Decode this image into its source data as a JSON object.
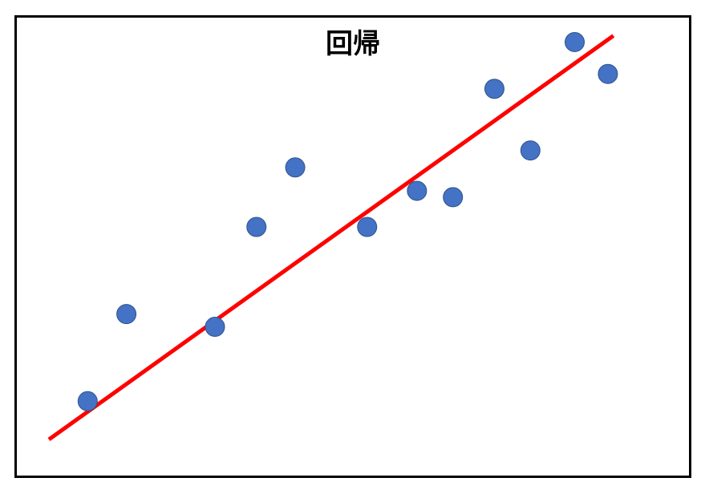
{
  "chart_data": {
    "type": "scatter",
    "title": "回帰",
    "xlabel": "",
    "ylabel": "",
    "grid": false,
    "axes_visible": false,
    "xlim": [
      0,
      100
    ],
    "ylim": [
      0,
      100
    ],
    "series": [
      {
        "kind": "points",
        "color": "#4472c4",
        "x": [
          7,
          14,
          30,
          37.5,
          44.5,
          57.5,
          66.5,
          73,
          80.5,
          87,
          95,
          101
        ],
        "y": [
          9,
          29.5,
          26.5,
          50,
          64,
          50,
          58.5,
          57,
          82.5,
          68,
          93.5,
          86
        ]
      },
      {
        "kind": "regression-line",
        "color": "#ff0000",
        "x": [
          0,
          102
        ],
        "y": [
          0,
          95
        ]
      }
    ]
  }
}
